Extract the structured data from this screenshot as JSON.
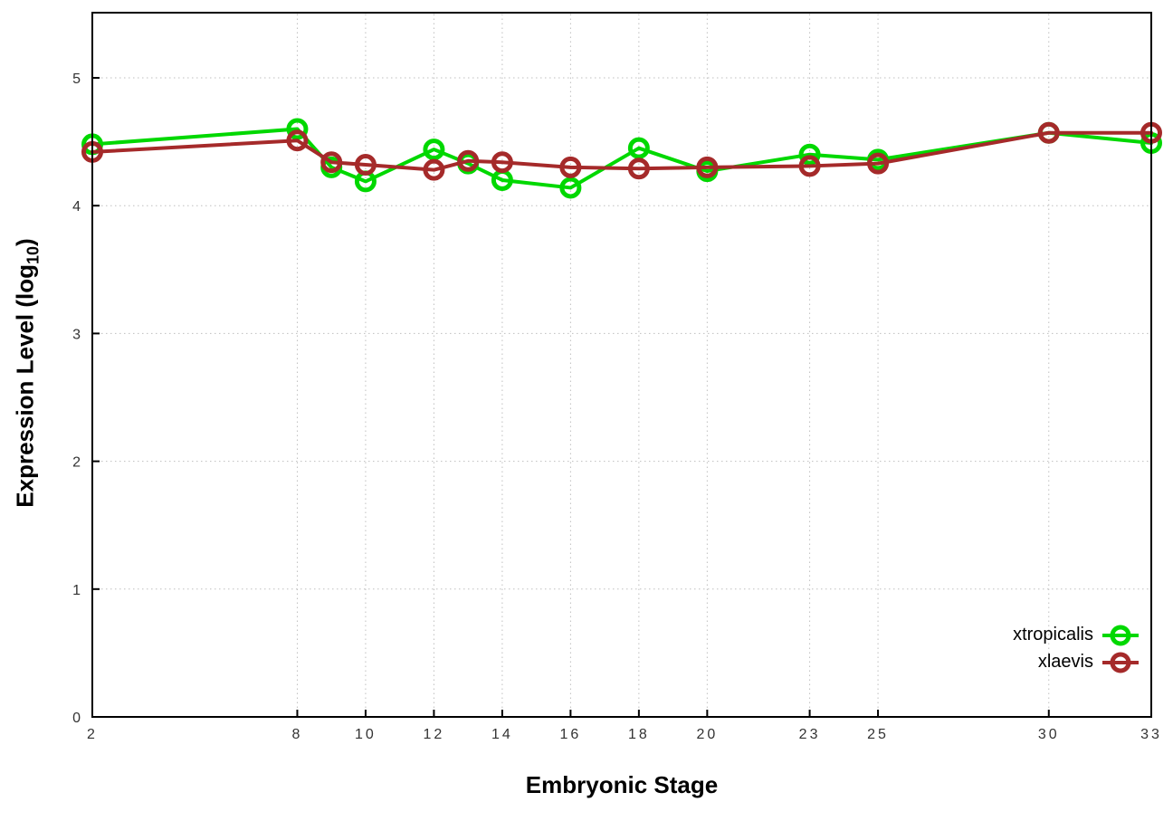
{
  "chart_data": {
    "type": "line",
    "title": "",
    "xlabel": "Embryonic Stage",
    "ylabel": "Expression Level (log10)",
    "ylabel_parts": {
      "base": "Expression Level (log",
      "subscript": "10",
      "suffix": ")"
    },
    "x": [
      2,
      8,
      9,
      10,
      12,
      13,
      14,
      16,
      18,
      20,
      23,
      25,
      30,
      33
    ],
    "series": [
      {
        "name": "xtropicalis",
        "color": "#00d800",
        "marker": "open-circle",
        "values": [
          4.48,
          4.6,
          4.3,
          4.19,
          4.44,
          4.33,
          4.2,
          4.14,
          4.45,
          4.27,
          4.4,
          4.36,
          4.57,
          4.49
        ]
      },
      {
        "name": "xlaevis",
        "color": "#a52a2a",
        "marker": "open-circle",
        "values": [
          4.42,
          4.51,
          4.34,
          4.32,
          4.28,
          4.35,
          4.34,
          4.3,
          4.29,
          4.3,
          4.31,
          4.33,
          4.57,
          4.57
        ]
      }
    ],
    "xticks": [
      2,
      8,
      10,
      12,
      14,
      16,
      18,
      20,
      23,
      25,
      30,
      33
    ],
    "yticks": [
      0,
      1,
      2,
      3,
      4,
      5
    ],
    "xlim": [
      2,
      33
    ],
    "ylim": [
      0,
      5.51
    ],
    "grid": true,
    "grid_style": "dotted",
    "legend_position": "inside-right-lower",
    "legend_entries": [
      "xtropicalis",
      "xlaevis"
    ]
  },
  "colors": {
    "background": "#ffffff",
    "axis": "#000000",
    "grid": "#bfbfbf",
    "tick_label": "#333333"
  }
}
